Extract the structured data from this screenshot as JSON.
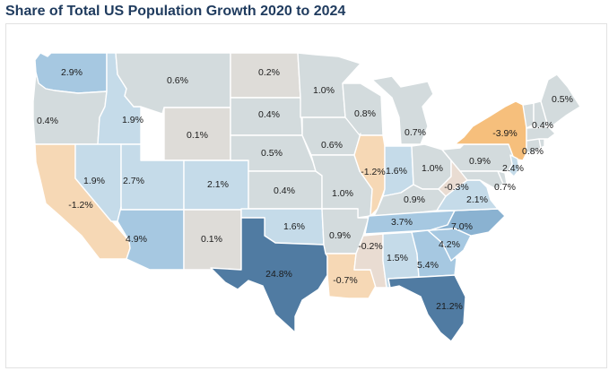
{
  "title": "Share of Total US Population Growth 2020 to 2024",
  "colors": {
    "neg_strong": "#f6bf7c",
    "neg_mild": "#f6d8b5",
    "near_zero_neg": "#e9dcd2",
    "flat": "#dedcd8",
    "low": "#d3dbdd",
    "light_blue": "#c5dbe9",
    "mid_blue": "#a6c8e1",
    "blue": "#8ab2d1",
    "dark_blue": "#507ba2",
    "border": "#ffffff"
  },
  "states": [
    {
      "id": "WA",
      "label": "2.9%",
      "value": 2.9,
      "fill": "mid_blue"
    },
    {
      "id": "OR",
      "label": "0.4%",
      "value": 0.4,
      "fill": "low"
    },
    {
      "id": "CA",
      "label": "-1.2%",
      "value": -1.2,
      "fill": "neg_mild"
    },
    {
      "id": "ID",
      "label": "1.9%",
      "value": 1.9,
      "fill": "light_blue"
    },
    {
      "id": "NV",
      "label": "1.9%",
      "value": 1.9,
      "fill": "light_blue"
    },
    {
      "id": "MT",
      "label": "0.6%",
      "value": 0.6,
      "fill": "low"
    },
    {
      "id": "WY",
      "label": "0.1%",
      "value": 0.1,
      "fill": "flat"
    },
    {
      "id": "UT",
      "label": "2.7%",
      "value": 2.7,
      "fill": "light_blue"
    },
    {
      "id": "AZ",
      "label": "4.9%",
      "value": 4.9,
      "fill": "mid_blue"
    },
    {
      "id": "CO",
      "label": "2.1%",
      "value": 2.1,
      "fill": "light_blue"
    },
    {
      "id": "NM",
      "label": "0.1%",
      "value": 0.1,
      "fill": "flat"
    },
    {
      "id": "ND",
      "label": "0.2%",
      "value": 0.2,
      "fill": "flat"
    },
    {
      "id": "SD",
      "label": "0.4%",
      "value": 0.4,
      "fill": "low"
    },
    {
      "id": "NE",
      "label": "0.5%",
      "value": 0.5,
      "fill": "low"
    },
    {
      "id": "KS",
      "label": "0.4%",
      "value": 0.4,
      "fill": "low"
    },
    {
      "id": "OK",
      "label": "1.6%",
      "value": 1.6,
      "fill": "light_blue"
    },
    {
      "id": "TX",
      "label": "24.8%",
      "value": 24.8,
      "fill": "dark_blue"
    },
    {
      "id": "MN",
      "label": "1.0%",
      "value": 1.0,
      "fill": "low"
    },
    {
      "id": "IA",
      "label": "0.6%",
      "value": 0.6,
      "fill": "low"
    },
    {
      "id": "MO",
      "label": "1.0%",
      "value": 1.0,
      "fill": "low"
    },
    {
      "id": "AR",
      "label": "0.9%",
      "value": 0.9,
      "fill": "low"
    },
    {
      "id": "LA",
      "label": "-0.7%",
      "value": -0.7,
      "fill": "neg_mild"
    },
    {
      "id": "WI",
      "label": "0.8%",
      "value": 0.8,
      "fill": "low"
    },
    {
      "id": "IL",
      "label": "-1.2%",
      "value": -1.2,
      "fill": "neg_mild"
    },
    {
      "id": "MI",
      "label": "0.7%",
      "value": 0.7,
      "fill": "low"
    },
    {
      "id": "IN",
      "label": "1.6%",
      "value": 1.6,
      "fill": "light_blue"
    },
    {
      "id": "OH",
      "label": "1.0%",
      "value": 1.0,
      "fill": "low"
    },
    {
      "id": "KY",
      "label": "0.9%",
      "value": 0.9,
      "fill": "low"
    },
    {
      "id": "TN",
      "label": "3.7%",
      "value": 3.7,
      "fill": "mid_blue"
    },
    {
      "id": "MS",
      "label": "-0.2%",
      "value": -0.2,
      "fill": "near_zero_neg"
    },
    {
      "id": "AL",
      "label": "1.5%",
      "value": 1.5,
      "fill": "light_blue"
    },
    {
      "id": "GA",
      "label": "5.4%",
      "value": 5.4,
      "fill": "mid_blue"
    },
    {
      "id": "FL",
      "label": "21.2%",
      "value": 21.2,
      "fill": "dark_blue"
    },
    {
      "id": "SC",
      "label": "4.2%",
      "value": 4.2,
      "fill": "mid_blue"
    },
    {
      "id": "NC",
      "label": "7.0%",
      "value": 7.0,
      "fill": "blue"
    },
    {
      "id": "VA",
      "label": "2.1%",
      "value": 2.1,
      "fill": "light_blue"
    },
    {
      "id": "WV",
      "label": "-0.3%",
      "value": -0.3,
      "fill": "near_zero_neg"
    },
    {
      "id": "PA",
      "label": "0.9%",
      "value": 0.9,
      "fill": "low"
    },
    {
      "id": "NY",
      "label": "-3.9%",
      "value": -3.9,
      "fill": "neg_strong"
    },
    {
      "id": "NJ",
      "label": "2.4%",
      "value": 2.4,
      "fill": "light_blue"
    },
    {
      "id": "MD",
      "label": "0.7%",
      "value": 0.7,
      "fill": "low"
    },
    {
      "id": "DE",
      "label": "",
      "value": null,
      "fill": "low"
    },
    {
      "id": "CT",
      "label": "0.8%",
      "value": 0.8,
      "fill": "low"
    },
    {
      "id": "RI",
      "label": "",
      "value": null,
      "fill": "low"
    },
    {
      "id": "MA",
      "label": "",
      "value": null,
      "fill": "low"
    },
    {
      "id": "VT",
      "label": "",
      "value": null,
      "fill": "low"
    },
    {
      "id": "NH",
      "label": "0.4%",
      "value": 0.4,
      "fill": "low"
    },
    {
      "id": "ME",
      "label": "0.5%",
      "value": 0.5,
      "fill": "low"
    }
  ]
}
